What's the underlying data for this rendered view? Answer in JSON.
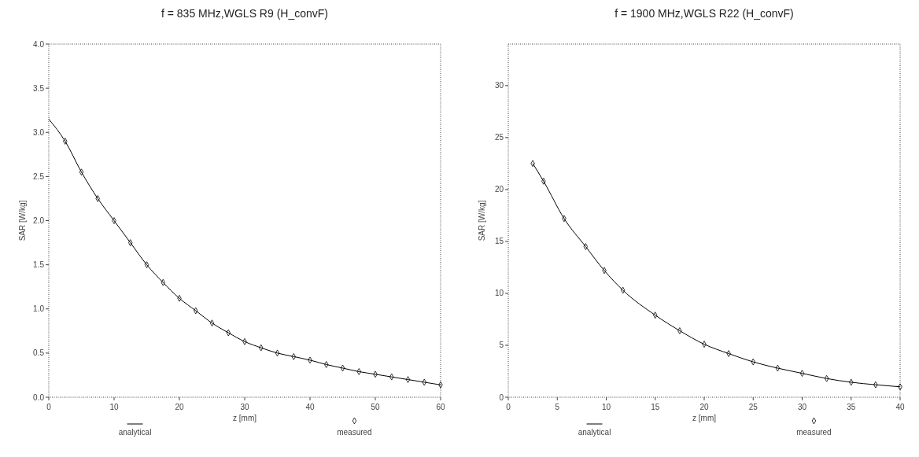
{
  "chart_data": [
    {
      "type": "line",
      "title": "f = 835 MHz,WGLS R9 (H_convF)",
      "xlabel": "z [mm]",
      "ylabel": "SAR [W/kg]",
      "xlim": [
        0,
        60
      ],
      "xticks": [
        0,
        10,
        20,
        30,
        40,
        50,
        60
      ],
      "ylim": [
        0,
        4
      ],
      "yticks": [
        {
          "value": 0,
          "label": "0.0"
        },
        0.5,
        {
          "value": 1,
          "label": "1.0"
        },
        1.5,
        {
          "value": 2,
          "label": "2.0"
        },
        2.5,
        {
          "value": 3,
          "label": "3.0"
        },
        3.5,
        {
          "value": 4,
          "label": "4.0"
        }
      ],
      "legend": "bottom",
      "series": [
        {
          "name": "analytical",
          "color": "#000000",
          "line_style": "solid",
          "x": [
            0,
            2.5,
            5,
            7.5,
            10,
            12.5,
            15,
            17.5,
            20,
            22.5,
            25,
            27.5,
            30,
            32.5,
            35,
            37.5,
            40,
            42.5,
            45,
            47.5,
            50,
            52.5,
            55,
            57.5,
            60
          ],
          "values": [
            3.15,
            2.9,
            2.55,
            2.25,
            2.0,
            1.75,
            1.5,
            1.3,
            1.12,
            0.98,
            0.84,
            0.73,
            0.63,
            0.56,
            0.5,
            0.46,
            0.42,
            0.37,
            0.33,
            0.29,
            0.26,
            0.23,
            0.2,
            0.17,
            0.14
          ]
        },
        {
          "name": "measured",
          "type": "scatter",
          "color": "#000000",
          "marker": "diamond",
          "x": [
            2.5,
            5,
            7.5,
            10,
            12.5,
            15,
            17.5,
            20,
            22.5,
            25,
            27.5,
            30,
            32.5,
            35,
            37.5,
            40,
            42.5,
            45,
            47.5,
            50,
            52.5,
            55,
            57.5,
            60
          ],
          "values": [
            2.9,
            2.55,
            2.25,
            2.0,
            1.75,
            1.5,
            1.3,
            1.12,
            0.98,
            0.84,
            0.73,
            0.63,
            0.56,
            0.5,
            0.46,
            0.42,
            0.37,
            0.33,
            0.29,
            0.26,
            0.23,
            0.2,
            0.17,
            0.14
          ]
        }
      ]
    },
    {
      "type": "line",
      "title": "f = 1900 MHz,WGLS R22 (H_convF)",
      "xlabel": "z [mm]",
      "ylabel": "SAR [W/kg]",
      "xlim": [
        0,
        40
      ],
      "xticks": [
        0,
        5,
        10,
        15,
        20,
        25,
        30,
        35,
        40
      ],
      "ylim": [
        0,
        34
      ],
      "yticks": [
        0,
        5,
        10,
        15,
        20,
        25,
        30
      ],
      "legend": "bottom",
      "series": [
        {
          "name": "analytical",
          "color": "#000000",
          "line_style": "solid",
          "x": [
            2.5,
            3.6,
            5.7,
            7.9,
            9.8,
            11.7,
            15,
            17.5,
            20,
            22.5,
            25,
            27.5,
            30,
            32.5,
            35,
            37.5,
            40
          ],
          "values": [
            22.5,
            20.8,
            17.2,
            14.5,
            12.2,
            10.3,
            7.9,
            6.4,
            5.1,
            4.2,
            3.4,
            2.8,
            2.3,
            1.8,
            1.44,
            1.2,
            1.0
          ]
        },
        {
          "name": "measured",
          "type": "scatter",
          "color": "#000000",
          "marker": "diamond",
          "x": [
            2.5,
            3.6,
            5.7,
            7.9,
            9.8,
            11.7,
            15,
            17.5,
            20,
            22.5,
            25,
            27.5,
            30,
            32.5,
            35,
            37.5,
            40
          ],
          "values": [
            22.5,
            20.8,
            17.2,
            14.5,
            12.2,
            10.3,
            7.9,
            6.4,
            5.1,
            4.2,
            3.4,
            2.8,
            2.3,
            1.8,
            1.44,
            1.2,
            1.0
          ]
        }
      ]
    }
  ]
}
